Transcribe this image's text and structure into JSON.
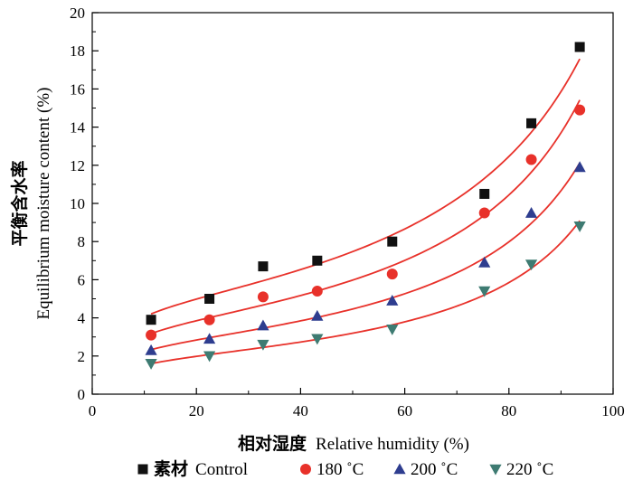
{
  "chart_data": {
    "type": "scatter",
    "xlabel_cn": "相对湿度",
    "xlabel_en": "Relative humidity (%)",
    "ylabel_cn": "平衡含水率",
    "ylabel_en": "Equilibrium moisture content (%)",
    "xlim": [
      0,
      100
    ],
    "ylim": [
      0,
      20
    ],
    "x_ticks": [
      "0",
      "20",
      "40",
      "60",
      "80",
      "100"
    ],
    "y_ticks": [
      "0",
      "2",
      "4",
      "6",
      "8",
      "10",
      "12",
      "14",
      "16",
      "18",
      "20"
    ],
    "grid": false,
    "legend_position": "bottom",
    "fit_color": "#e8312a",
    "series": [
      {
        "name_cn": "素材",
        "name": "Control",
        "marker": "square",
        "color": "#111111",
        "x": [
          11.3,
          22.5,
          32.8,
          43.2,
          57.6,
          75.3,
          84.3,
          93.6
        ],
        "y": [
          3.9,
          5.0,
          6.7,
          7.0,
          8.0,
          10.5,
          14.2,
          18.2
        ]
      },
      {
        "name": "180 ˚C",
        "marker": "circle",
        "color": "#e8312a",
        "x": [
          11.3,
          22.5,
          32.8,
          43.2,
          57.6,
          75.3,
          84.3,
          93.6
        ],
        "y": [
          3.1,
          3.9,
          5.1,
          5.4,
          6.3,
          9.5,
          12.3,
          14.9
        ]
      },
      {
        "name": "200 ˚C",
        "marker": "triangle-up",
        "color": "#2e3d8f",
        "x": [
          11.3,
          22.5,
          32.8,
          43.2,
          57.6,
          75.3,
          84.3,
          93.6
        ],
        "y": [
          2.3,
          2.9,
          3.6,
          4.1,
          4.9,
          6.9,
          9.5,
          11.9
        ]
      },
      {
        "name": "220 ˚C",
        "marker": "triangle-down",
        "color": "#3e7b72",
        "x": [
          11.3,
          22.5,
          32.8,
          43.2,
          57.6,
          75.3,
          84.3,
          93.6
        ],
        "y": [
          1.6,
          2.0,
          2.6,
          2.9,
          3.4,
          5.4,
          6.8,
          8.8
        ]
      }
    ]
  }
}
